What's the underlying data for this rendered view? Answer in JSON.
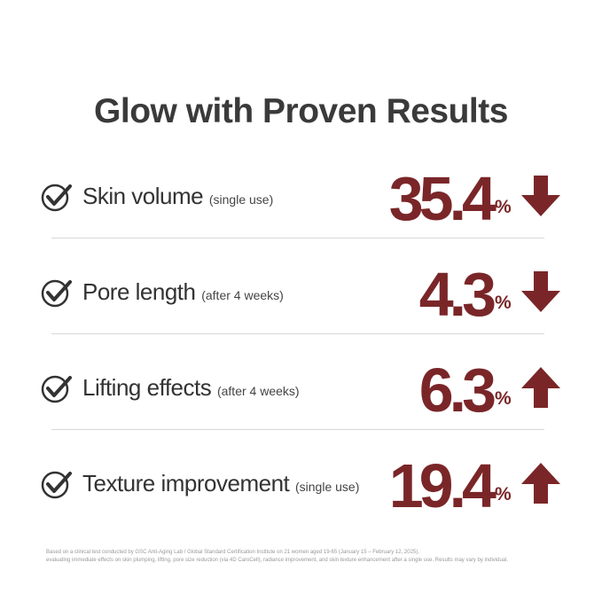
{
  "title": "Glow with Proven Results",
  "rows": [
    {
      "label": "Skin volume",
      "note": "(single use)",
      "value": 35.4,
      "unit": "%",
      "direction": "down"
    },
    {
      "label": "Pore length",
      "note": "(after 4 weeks)",
      "value": 4.3,
      "unit": "%",
      "direction": "down"
    },
    {
      "label": "Lifting effects",
      "note": "(after 4 weeks)",
      "value": 6.3,
      "unit": "%",
      "direction": "up"
    },
    {
      "label": "Texture improvement",
      "note": "(single use)",
      "value": 19.4,
      "unit": "%",
      "direction": "up"
    }
  ],
  "footnote": [
    "Based on a clinical test conducted by GSC Anti-Aging Lab / Global Standard Certification Institute on 21 women aged 19-65 (January 15 – February 12, 2025),",
    "evaluating immediate effects on skin plumping, lifting, pore size reduction (via 4D CaroCell), radiance improvement, and skin texture enhancement after a single use. Results may vary by individual."
  ]
}
